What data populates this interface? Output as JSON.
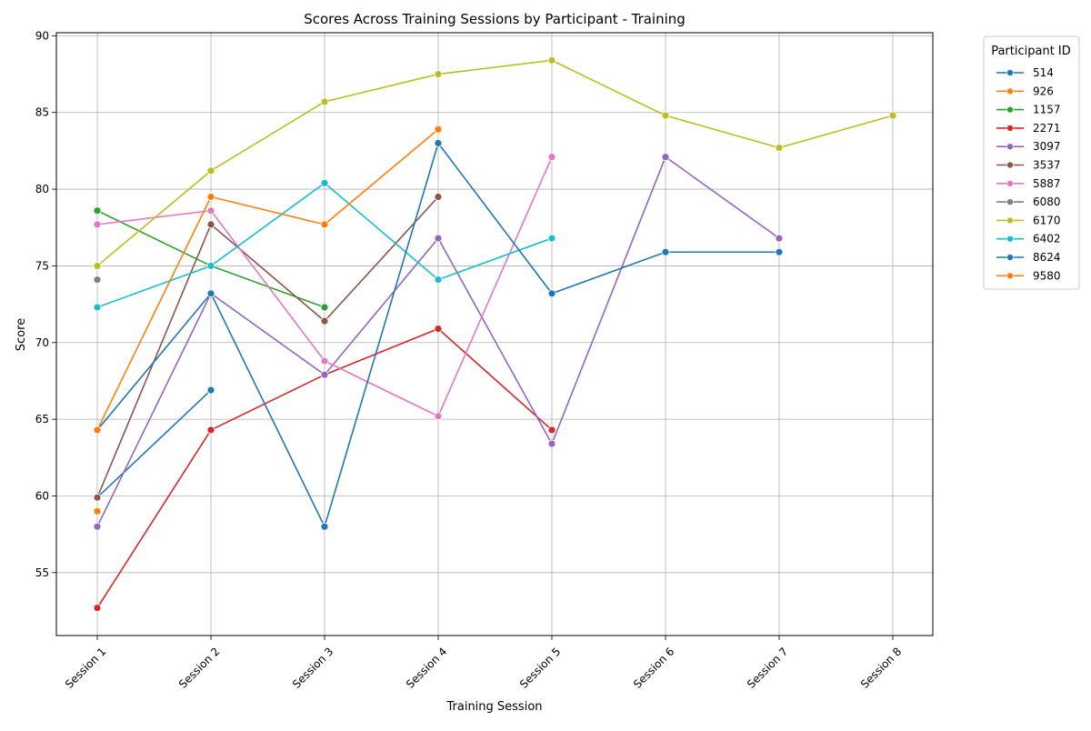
{
  "chart_data": {
    "type": "line",
    "title": "Scores Across Training Sessions by Participant - Training",
    "xlabel": "Training Session",
    "ylabel": "Score",
    "categories": [
      "Session 1",
      "Session 2",
      "Session 3",
      "Session 4",
      "Session 5",
      "Session 6",
      "Session 7",
      "Session 8"
    ],
    "ylim": [
      50.9,
      90.2
    ],
    "yticks": [
      55,
      60,
      65,
      70,
      75,
      80,
      85,
      90
    ],
    "grid": true,
    "legend": {
      "title": "Participant ID",
      "placement": "outside-right"
    },
    "series": [
      {
        "name": "514",
        "color": "#1f77b4",
        "values": [
          59.9,
          66.9,
          null,
          null,
          null,
          null,
          null,
          null
        ]
      },
      {
        "name": "926",
        "color": "#ff7f0e",
        "values": [
          59.0,
          null,
          null,
          null,
          null,
          null,
          null,
          null
        ]
      },
      {
        "name": "1157",
        "color": "#2ca02c",
        "values": [
          78.6,
          75.0,
          72.3,
          null,
          null,
          null,
          null,
          null
        ]
      },
      {
        "name": "2271",
        "color": "#d62728",
        "values": [
          52.7,
          64.3,
          67.9,
          70.9,
          64.3,
          null,
          null,
          null
        ]
      },
      {
        "name": "3097",
        "color": "#9467bd",
        "values": [
          58.0,
          73.2,
          67.9,
          76.8,
          63.4,
          82.1,
          76.8,
          null
        ]
      },
      {
        "name": "3537",
        "color": "#8c564b",
        "values": [
          59.9,
          77.7,
          71.4,
          79.5,
          null,
          null,
          null,
          null
        ]
      },
      {
        "name": "5887",
        "color": "#e377c2",
        "values": [
          77.7,
          78.6,
          68.8,
          65.2,
          82.1,
          null,
          null,
          null
        ]
      },
      {
        "name": "6080",
        "color": "#7f7f7f",
        "values": [
          74.1,
          null,
          null,
          null,
          null,
          null,
          null,
          null
        ]
      },
      {
        "name": "6170",
        "color": "#bcbd22",
        "values": [
          75.0,
          81.2,
          85.7,
          87.5,
          88.4,
          84.8,
          82.7,
          84.8
        ]
      },
      {
        "name": "6402",
        "color": "#17becf",
        "values": [
          72.3,
          75.0,
          80.4,
          74.1,
          76.8,
          null,
          null,
          null
        ]
      },
      {
        "name": "8624",
        "color": "#1f77b4",
        "values": [
          64.3,
          73.2,
          58.0,
          83.0,
          73.2,
          75.9,
          75.9,
          null
        ]
      },
      {
        "name": "9580",
        "color": "#ff7f0e",
        "values": [
          64.3,
          79.5,
          77.7,
          83.9,
          null,
          null,
          null,
          null
        ]
      }
    ]
  }
}
